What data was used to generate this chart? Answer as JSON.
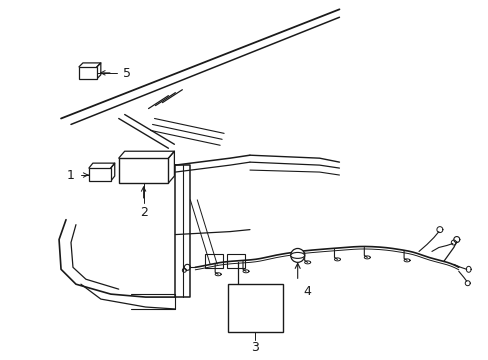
{
  "background_color": "#ffffff",
  "line_color": "#1a1a1a",
  "figsize": [
    4.89,
    3.6
  ],
  "dpi": 100,
  "label_fs": 9,
  "lw_main": 1.1,
  "lw_thin": 0.7
}
